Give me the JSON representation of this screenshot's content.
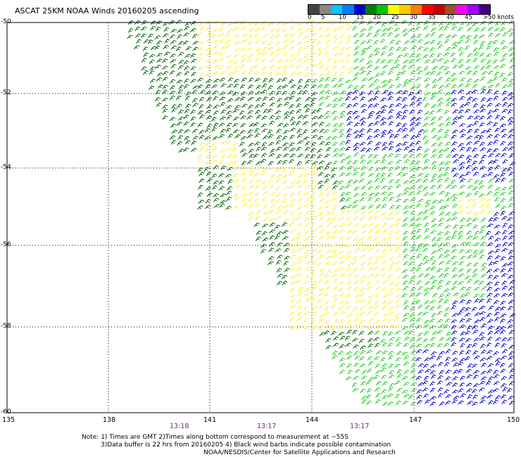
{
  "title": "ASCAT 25KM NOAA Winds 20160205 ascending",
  "legend": {
    "labels": [
      "0",
      "5",
      "10",
      "15",
      "20",
      "25",
      "30",
      "35",
      "40",
      "45",
      ">50 knots"
    ],
    "colors": [
      "#444444",
      "#888888",
      "#00c8ff",
      "#0080ff",
      "#0000c8",
      "#008000",
      "#00c800",
      "#ffff00",
      "#ffc800",
      "#ff8000",
      "#ff0000",
      "#c80000",
      "#a05028",
      "#ff00ff",
      "#a000ff",
      "#400080"
    ]
  },
  "axes": {
    "y_labels": [
      "-50",
      "-52",
      "-54",
      "-56",
      "-58",
      "-60"
    ],
    "x_labels": [
      "135",
      "138",
      "141",
      "144",
      "147",
      "150"
    ],
    "time_labels": [
      "13:18",
      "13:17",
      "13:17"
    ]
  },
  "notes": {
    "line1": "Note: 1) Times are GMT 2)Times along bottom correspond to measurement at ~55S",
    "line2": "3)Data buffer is 22 hrs from 20160205 4) Black wind barbs indicate possible contamination",
    "line3": "NOAA/NESDIS/Center for Satellite Applications and Research"
  },
  "map_data": {
    "lon_range": [
      135,
      150
    ],
    "lat_range": [
      -60,
      -50
    ],
    "barb_colors": {
      "yellow": "#ffee44",
      "dark_green": "#006400",
      "green": "#22cc22",
      "blue": "#0000cc"
    }
  }
}
